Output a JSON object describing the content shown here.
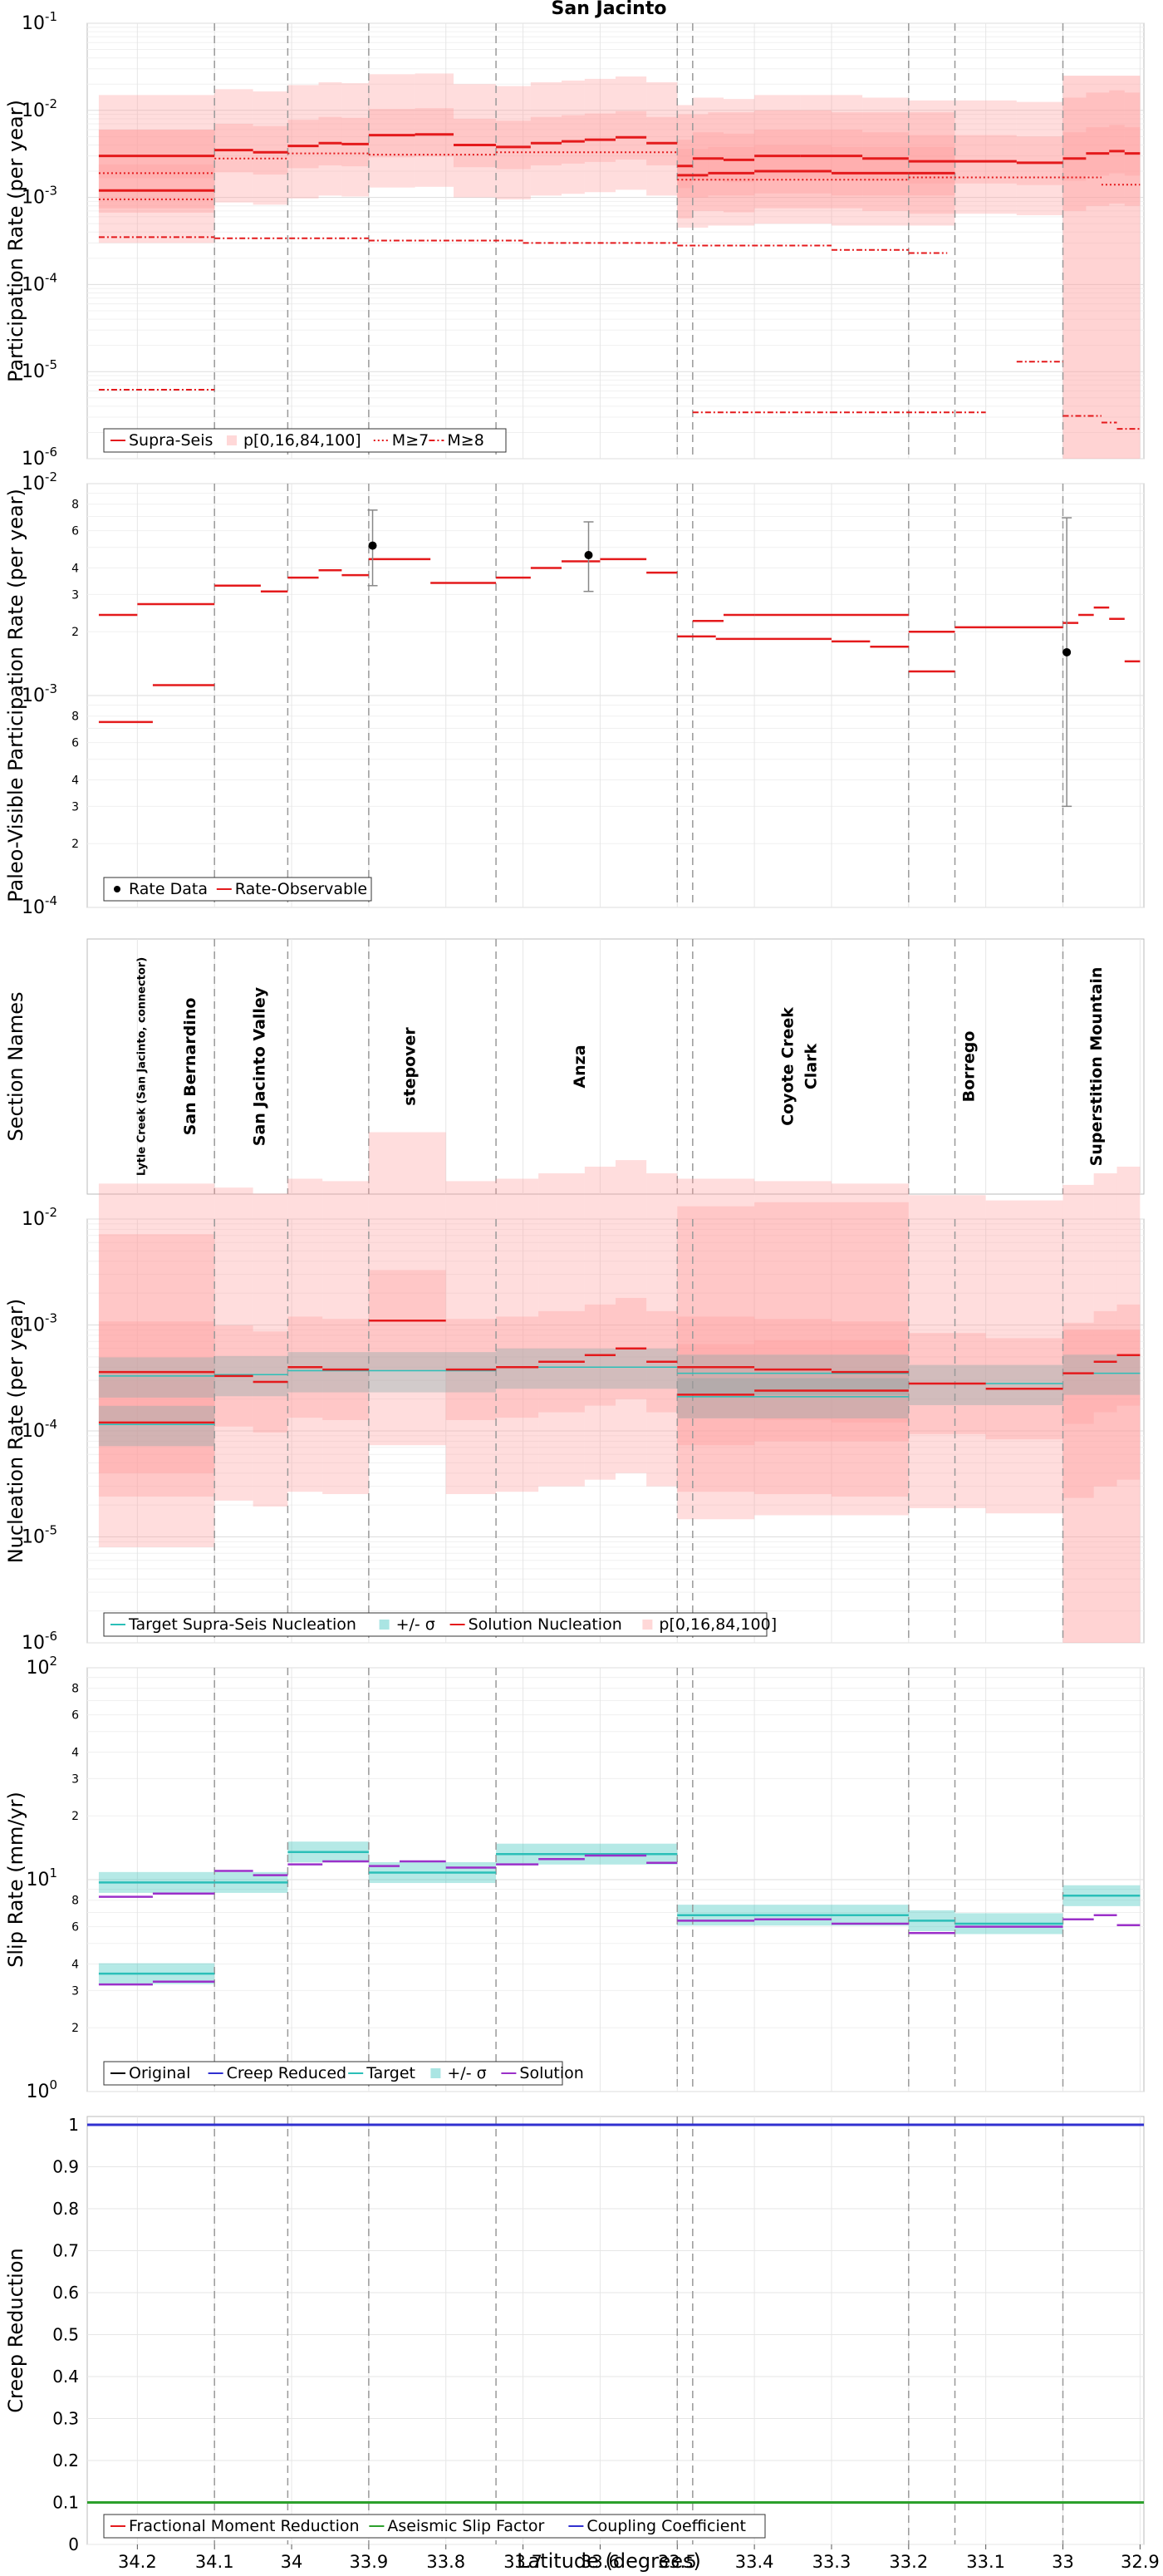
{
  "title": "San Jacinto",
  "colors": {
    "red": "#e41a1c",
    "redlight": "#ff9e9e",
    "cyan": "#2bbfb8",
    "purple": "#9b30c9",
    "blue": "#3030d0",
    "green": "#2ca02c",
    "grid": "#e6e6e6",
    "dash": "#999999"
  },
  "x_axis": {
    "label": "Latitude (degrees)",
    "xlim": [
      34.265,
      32.895
    ],
    "ticks": [
      34.2,
      34.1,
      34.0,
      33.9,
      33.8,
      33.7,
      33.6,
      33.5,
      33.4,
      33.3,
      33.2,
      33.1,
      33.0,
      32.9
    ],
    "tick_labels": [
      "34.2",
      "34.1",
      "34",
      "33.9",
      "33.8",
      "33.7",
      "33.6",
      "33.5",
      "33.4",
      "33.3",
      "33.2",
      "33.1",
      "33",
      "32.9"
    ],
    "boundaries": [
      34.1,
      34.005,
      33.9,
      33.735,
      33.5,
      33.48,
      33.2,
      33.14,
      33.0
    ]
  },
  "sections": {
    "ylabel": "Section Names",
    "names": [
      {
        "label": "Lytle Creek (San Jacinto, connector)",
        "lat": 34.19,
        "small": true
      },
      {
        "label": "San Bernardino",
        "lat": 34.125
      },
      {
        "label": "San Jacinto Valley",
        "lat": 34.035
      },
      {
        "label": "stepover",
        "lat": 33.84
      },
      {
        "label": "Anza",
        "lat": 33.62
      },
      {
        "label": "Coyote Creek",
        "lat": 33.35
      },
      {
        "label": "Clark",
        "lat": 33.32
      },
      {
        "label": "Borrego",
        "lat": 33.115
      },
      {
        "label": "Superstition Mountain",
        "lat": 32.95
      }
    ]
  },
  "chart_data": [
    {
      "type": "line",
      "name": "participation",
      "ylabel": "Participation Rate (per year)",
      "yscale": "log",
      "ylim_exp": [
        -6,
        -1
      ],
      "legend": [
        "Supra-Seis",
        "p[0,16,84,100]",
        "M≥7",
        "M≥8"
      ],
      "series": [
        {
          "name": "Supra-Seis",
          "style": "solid",
          "width": 3,
          "bands": true,
          "segments": [
            [
              34.25,
              34.1,
              0.003
            ],
            [
              34.1,
              34.05,
              0.0035
            ],
            [
              34.05,
              34.005,
              0.0033
            ],
            [
              34.005,
              33.965,
              0.0039
            ],
            [
              33.965,
              33.935,
              0.0042
            ],
            [
              33.935,
              33.9,
              0.0041
            ],
            [
              33.9,
              33.84,
              0.0052
            ],
            [
              33.84,
              33.79,
              0.0053
            ],
            [
              33.79,
              33.735,
              0.004
            ],
            [
              33.735,
              33.69,
              0.0038
            ],
            [
              33.69,
              33.65,
              0.0042
            ],
            [
              33.65,
              33.62,
              0.0044
            ],
            [
              33.62,
              33.58,
              0.0046
            ],
            [
              33.58,
              33.54,
              0.0049
            ],
            [
              33.54,
              33.5,
              0.0042
            ],
            [
              33.5,
              33.48,
              0.0023
            ],
            [
              33.48,
              33.44,
              0.0028
            ],
            [
              33.44,
              33.4,
              0.0027
            ],
            [
              33.4,
              33.34,
              0.003
            ],
            [
              33.34,
              33.26,
              0.003
            ],
            [
              33.26,
              33.2,
              0.0028
            ],
            [
              33.2,
              33.14,
              0.0026
            ],
            [
              33.14,
              33.06,
              0.0026
            ],
            [
              33.06,
              33.0,
              0.0025
            ],
            [
              33.0,
              32.97,
              0.0028
            ],
            [
              32.97,
              32.94,
              0.0032
            ],
            [
              32.94,
              32.92,
              0.0034
            ],
            [
              32.92,
              32.9,
              0.0032
            ]
          ]
        },
        {
          "name": "Supra-Seis (low branch)",
          "style": "solid",
          "width": 3,
          "bands": true,
          "segments": [
            [
              34.25,
              34.1,
              0.0012
            ],
            [
              33.5,
              33.46,
              0.0018
            ],
            [
              33.46,
              33.4,
              0.0019
            ],
            [
              33.4,
              33.3,
              0.002
            ],
            [
              33.3,
              33.2,
              0.0019
            ],
            [
              33.2,
              33.14,
              0.0019
            ]
          ]
        },
        {
          "name": "M≥7",
          "style": "dot",
          "width": 2,
          "bands": false,
          "segments": [
            [
              34.25,
              34.1,
              0.0019
            ],
            [
              34.25,
              34.1,
              0.00095
            ],
            [
              34.1,
              34.005,
              0.0028
            ],
            [
              34.005,
              33.9,
              0.0032
            ],
            [
              33.9,
              33.735,
              0.0031
            ],
            [
              33.735,
              33.5,
              0.0033
            ],
            [
              33.5,
              33.2,
              0.0016
            ],
            [
              33.2,
              33.0,
              0.0017
            ],
            [
              33.0,
              32.95,
              0.0017
            ],
            [
              32.95,
              32.9,
              0.0014
            ]
          ]
        },
        {
          "name": "M≥8",
          "style": "dashdot",
          "width": 2,
          "bands": false,
          "segments": [
            [
              34.25,
              34.1,
              0.00035
            ],
            [
              34.1,
              33.9,
              0.00034
            ],
            [
              33.9,
              33.7,
              0.00032
            ],
            [
              33.7,
              33.5,
              0.0003
            ],
            [
              33.5,
              33.3,
              0.00028
            ],
            [
              33.3,
              33.2,
              0.00025
            ],
            [
              33.2,
              33.15,
              0.00023
            ],
            [
              34.25,
              34.1,
              6.2e-06
            ],
            [
              33.48,
              33.3,
              3.4e-06
            ],
            [
              33.3,
              33.1,
              3.4e-06
            ],
            [
              33.06,
              33.0,
              1.3e-05
            ],
            [
              33.0,
              32.95,
              3.1e-06
            ],
            [
              32.95,
              32.93,
              2.6e-06
            ],
            [
              32.93,
              32.9,
              2.2e-06
            ]
          ]
        }
      ]
    },
    {
      "type": "line",
      "name": "paleo",
      "ylabel": "Paleo-Visible Participation Rate (per year)",
      "yscale": "log",
      "ylim_exp": [
        -4,
        -2
      ],
      "legend": [
        "Rate Data",
        "Rate-Observable"
      ],
      "series": [
        {
          "name": "Rate-Observable",
          "style": "solid",
          "width": 2.5,
          "segments": [
            [
              34.25,
              34.2,
              0.0024
            ],
            [
              34.2,
              34.1,
              0.0027
            ],
            [
              34.25,
              34.18,
              0.00075
            ],
            [
              34.18,
              34.1,
              0.00112
            ],
            [
              34.1,
              34.04,
              0.0033
            ],
            [
              34.04,
              34.005,
              0.0031
            ],
            [
              34.005,
              33.965,
              0.0036
            ],
            [
              33.965,
              33.935,
              0.0039
            ],
            [
              33.935,
              33.9,
              0.0037
            ],
            [
              33.9,
              33.82,
              0.0044
            ],
            [
              33.82,
              33.735,
              0.0034
            ],
            [
              33.735,
              33.69,
              0.0036
            ],
            [
              33.69,
              33.65,
              0.004
            ],
            [
              33.65,
              33.6,
              0.0043
            ],
            [
              33.6,
              33.54,
              0.0044
            ],
            [
              33.54,
              33.5,
              0.0038
            ],
            [
              33.5,
              33.45,
              0.0019
            ],
            [
              33.45,
              33.3,
              0.00185
            ],
            [
              33.3,
              33.25,
              0.0018
            ],
            [
              33.25,
              33.2,
              0.0017
            ],
            [
              33.48,
              33.44,
              0.00225
            ],
            [
              33.44,
              33.4,
              0.0024
            ],
            [
              33.4,
              33.2,
              0.0024
            ],
            [
              33.2,
              33.14,
              0.0013
            ],
            [
              33.2,
              33.14,
              0.002
            ],
            [
              33.14,
              33.0,
              0.0021
            ],
            [
              33.0,
              32.98,
              0.0022
            ],
            [
              32.98,
              32.96,
              0.0024
            ],
            [
              32.96,
              32.94,
              0.0026
            ],
            [
              32.94,
              32.92,
              0.0023
            ],
            [
              32.92,
              32.9,
              0.00145
            ]
          ]
        }
      ],
      "points": [
        {
          "lat": 33.895,
          "value": 0.0051,
          "low": 0.0033,
          "high": 0.0075
        },
        {
          "lat": 33.615,
          "value": 0.0046,
          "low": 0.0031,
          "high": 0.0066
        },
        {
          "lat": 32.995,
          "value": 0.0016,
          "low": 0.0003,
          "high": 0.0069
        }
      ]
    },
    {
      "type": "line",
      "name": "nucleation",
      "ylabel": "Nucleation Rate (per year)",
      "yscale": "log",
      "ylim_exp": [
        -6,
        -2
      ],
      "legend": [
        "Target Supra-Seis Nucleation",
        "+/- σ",
        "Solution Nucleation",
        "p[0,16,84,100]"
      ],
      "series": [
        {
          "name": "Target Supra-Seis Nucleation",
          "style": "solid",
          "width": 1.5,
          "color": "cyan",
          "segments": [
            [
              34.25,
              34.1,
              0.00033
            ],
            [
              34.1,
              34.005,
              0.00034
            ],
            [
              34.005,
              33.9,
              0.00037
            ],
            [
              33.9,
              33.735,
              0.00037
            ],
            [
              33.735,
              33.5,
              0.0004
            ],
            [
              33.5,
              33.2,
              0.00035
            ],
            [
              33.2,
              33.0,
              0.00028
            ],
            [
              33.0,
              32.9,
              0.00035
            ],
            [
              34.25,
              34.1,
              0.000115
            ],
            [
              33.5,
              33.2,
              0.00021
            ]
          ]
        },
        {
          "name": "Solution Nucleation",
          "style": "solid",
          "width": 2.5,
          "color": "red",
          "segments": [
            [
              34.25,
              34.1,
              0.00036
            ],
            [
              34.1,
              34.05,
              0.00033
            ],
            [
              34.05,
              34.005,
              0.00029
            ],
            [
              34.005,
              33.96,
              0.0004
            ],
            [
              33.96,
              33.9,
              0.00038
            ],
            [
              33.9,
              33.8,
              0.0011
            ],
            [
              33.8,
              33.735,
              0.00038
            ],
            [
              33.735,
              33.68,
              0.0004
            ],
            [
              33.68,
              33.62,
              0.00045
            ],
            [
              33.62,
              33.58,
              0.00052
            ],
            [
              33.58,
              33.54,
              0.0006
            ],
            [
              33.54,
              33.5,
              0.00045
            ],
            [
              33.5,
              33.4,
              0.0004
            ],
            [
              33.4,
              33.3,
              0.00038
            ],
            [
              33.3,
              33.2,
              0.00036
            ],
            [
              33.2,
              33.1,
              0.00028
            ],
            [
              33.1,
              33.0,
              0.00025
            ],
            [
              33.0,
              32.96,
              0.00035
            ],
            [
              32.96,
              32.93,
              0.00045
            ],
            [
              32.93,
              32.9,
              0.00052
            ],
            [
              34.25,
              34.1,
              0.00012
            ],
            [
              33.5,
              33.4,
              0.00022
            ],
            [
              33.4,
              33.2,
              0.00024
            ]
          ]
        }
      ]
    },
    {
      "type": "line",
      "name": "slip",
      "ylabel": "Slip Rate (mm/yr)",
      "yscale": "log",
      "ylim_exp": [
        0,
        2
      ],
      "legend": [
        "Original",
        "Creep Reduced",
        "Target",
        "+/- σ",
        "Solution"
      ],
      "series": [
        {
          "name": "Target",
          "style": "solid",
          "width": 2.5,
          "color": "cyan",
          "segments": [
            [
              34.25,
              34.1,
              3.6
            ],
            [
              34.25,
              34.1,
              9.7
            ],
            [
              34.1,
              34.005,
              9.7
            ],
            [
              34.005,
              33.9,
              13.5
            ],
            [
              33.9,
              33.735,
              10.8
            ],
            [
              33.735,
              33.5,
              13.2
            ],
            [
              33.5,
              33.2,
              6.8
            ],
            [
              33.2,
              33.14,
              6.4
            ],
            [
              33.14,
              33.0,
              6.2
            ],
            [
              33.0,
              32.9,
              8.4
            ]
          ]
        },
        {
          "name": "Solution",
          "style": "solid",
          "width": 2.5,
          "color": "purple",
          "segments": [
            [
              34.25,
              34.18,
              8.3
            ],
            [
              34.18,
              34.1,
              8.6
            ],
            [
              34.25,
              34.18,
              3.2
            ],
            [
              34.18,
              34.1,
              3.3
            ],
            [
              34.1,
              34.05,
              11.0
            ],
            [
              34.05,
              34.005,
              10.5
            ],
            [
              34.005,
              33.96,
              11.8
            ],
            [
              33.96,
              33.9,
              12.2
            ],
            [
              33.9,
              33.86,
              11.6
            ],
            [
              33.86,
              33.8,
              12.2
            ],
            [
              33.8,
              33.735,
              11.4
            ],
            [
              33.735,
              33.68,
              11.8
            ],
            [
              33.68,
              33.62,
              12.5
            ],
            [
              33.62,
              33.54,
              13.0
            ],
            [
              33.54,
              33.5,
              12.0
            ],
            [
              33.5,
              33.4,
              6.4
            ],
            [
              33.4,
              33.3,
              6.5
            ],
            [
              33.3,
              33.2,
              6.2
            ],
            [
              33.2,
              33.14,
              5.6
            ],
            [
              33.14,
              33.0,
              6.0
            ],
            [
              33.0,
              32.96,
              6.5
            ],
            [
              32.96,
              32.93,
              6.8
            ],
            [
              32.93,
              32.9,
              6.1
            ]
          ]
        }
      ]
    },
    {
      "type": "line",
      "name": "creep",
      "ylabel": "Creep Reduction",
      "yscale": "linear",
      "ylim": [
        0,
        1
      ],
      "yticks": [
        0,
        0.1,
        0.2,
        0.3,
        0.4,
        0.5,
        0.6,
        0.7,
        0.8,
        0.9,
        1
      ],
      "ytick_labels": [
        "0",
        "0.1",
        "0.2",
        "0.3",
        "0.4",
        "0.5",
        "0.6",
        "0.7",
        "0.8",
        "0.9",
        "1"
      ],
      "legend": [
        "Fractional Moment Reduction",
        "Aseismic Slip Factor",
        "Coupling Coefficient"
      ],
      "series": [
        {
          "name": "Aseismic Slip Factor",
          "color": "green",
          "value": 0.1
        },
        {
          "name": "Coupling Coefficient",
          "color": "blue",
          "value": 1.0
        }
      ]
    }
  ]
}
